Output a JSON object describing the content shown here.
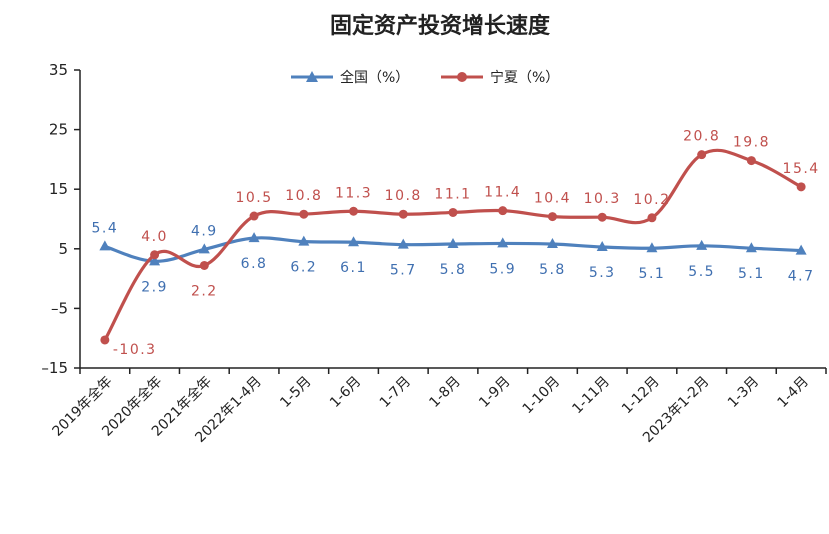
{
  "chart_data": {
    "type": "line",
    "title": "固定资产投资增长速度",
    "categories": [
      "2019年全年",
      "2020年全年",
      "2021年全年",
      "2022年1-4月",
      "1-5月",
      "1-6月",
      "1-7月",
      "1-8月",
      "1-9月",
      "1-10月",
      "1-11月",
      "1-12月",
      "2023年1-2月",
      "1-3月",
      "1-4月"
    ],
    "series": [
      {
        "name": "全国（%）",
        "color": "#4f81bd",
        "values": [
          5.4,
          2.9,
          4.9,
          6.8,
          6.2,
          6.1,
          5.7,
          5.8,
          5.9,
          5.8,
          5.3,
          5.1,
          5.5,
          5.1,
          4.7
        ],
        "labels": [
          "5.4",
          "2.9",
          "4.9",
          "6.8",
          "6.2",
          "6.1",
          "5.7",
          "5.8",
          "5.9",
          "5.8",
          "5.3",
          "5.1",
          "5.5",
          "5.1",
          "4.7"
        ]
      },
      {
        "name": "宁夏（%）",
        "color": "#c0504d",
        "values": [
          -10.3,
          4.0,
          2.2,
          10.5,
          10.8,
          11.3,
          10.8,
          11.1,
          11.4,
          10.4,
          10.3,
          10.2,
          20.8,
          19.8,
          15.4
        ],
        "labels": [
          "-10.3",
          "4.0",
          "2.2",
          "10.5",
          "10.8",
          "11.3",
          "10.8",
          "11.1",
          "11.4",
          "10.4",
          "10.3",
          "10.2",
          "20.8",
          "19.8",
          "15.4"
        ]
      }
    ],
    "ylim": [
      -15,
      35
    ],
    "yticks": [
      35,
      25,
      15,
      5,
      -5,
      -15
    ],
    "ytick_labels": [
      "35",
      "25",
      "15",
      "5",
      "–5",
      "–15"
    ],
    "legend": "top-center",
    "grid": false
  }
}
